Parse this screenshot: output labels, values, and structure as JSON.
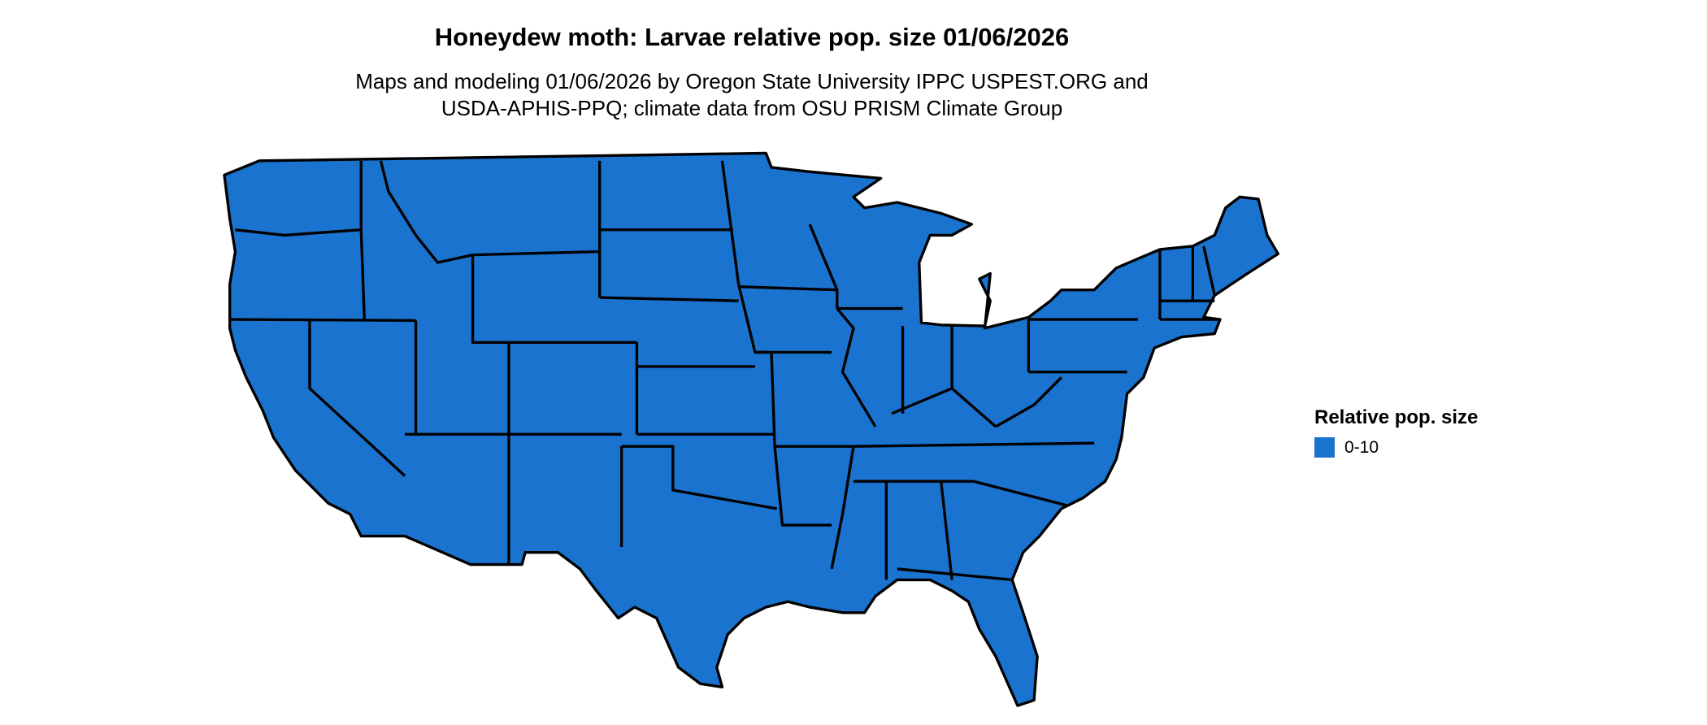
{
  "title": "Honeydew moth: Larvae relative pop. size 01/06/2026",
  "subtitle_lines": [
    "Maps and modeling 01/06/2026 by Oregon State University IPPC USPEST.ORG and",
    "USDA-APHIS-PPQ; climate data from OSU PRISM Climate Group"
  ],
  "map": {
    "region": "Contiguous United States (state boundaries)",
    "fill_color": "#1A73CF",
    "border_color": "#000000"
  },
  "legend": {
    "title": "Relative pop. size",
    "items": [
      {
        "label": "0-10",
        "color": "#1A73CF"
      }
    ]
  }
}
